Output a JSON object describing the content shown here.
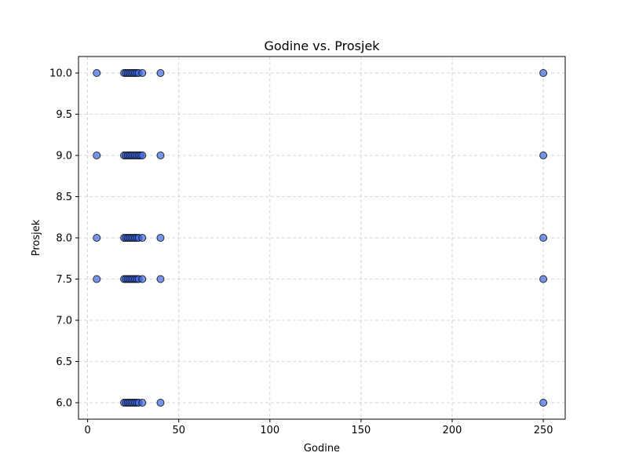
{
  "chart_data": {
    "type": "scatter",
    "title": "Godine vs. Prosjek",
    "xlabel": "Godine",
    "ylabel": "Prosjek",
    "xlim": [
      -5,
      262
    ],
    "ylim": [
      5.8,
      10.2
    ],
    "x_ticks": [
      0,
      50,
      100,
      150,
      200,
      250
    ],
    "y_ticks": [
      6.0,
      6.5,
      7.0,
      7.5,
      8.0,
      8.5,
      9.0,
      9.5,
      10.0
    ],
    "grid": true,
    "legend": "none",
    "marker_color": "#4169e1",
    "marker_edge_color": "#000000",
    "points": [
      {
        "x": 5,
        "y": 10.0
      },
      {
        "x": 5,
        "y": 9.0
      },
      {
        "x": 5,
        "y": 8.0
      },
      {
        "x": 5,
        "y": 7.5
      },
      {
        "x": 20,
        "y": 10.0
      },
      {
        "x": 21,
        "y": 10.0
      },
      {
        "x": 22,
        "y": 10.0
      },
      {
        "x": 23,
        "y": 10.0
      },
      {
        "x": 24,
        "y": 10.0
      },
      {
        "x": 25,
        "y": 10.0
      },
      {
        "x": 26,
        "y": 10.0
      },
      {
        "x": 27,
        "y": 10.0
      },
      {
        "x": 28,
        "y": 10.0
      },
      {
        "x": 30,
        "y": 10.0
      },
      {
        "x": 20,
        "y": 9.0
      },
      {
        "x": 21,
        "y": 9.0
      },
      {
        "x": 22,
        "y": 9.0
      },
      {
        "x": 23,
        "y": 9.0
      },
      {
        "x": 24,
        "y": 9.0
      },
      {
        "x": 25,
        "y": 9.0
      },
      {
        "x": 26,
        "y": 9.0
      },
      {
        "x": 27,
        "y": 9.0
      },
      {
        "x": 28,
        "y": 9.0
      },
      {
        "x": 29,
        "y": 9.0
      },
      {
        "x": 30,
        "y": 9.0
      },
      {
        "x": 20,
        "y": 8.0
      },
      {
        "x": 21,
        "y": 8.0
      },
      {
        "x": 22,
        "y": 8.0
      },
      {
        "x": 23,
        "y": 8.0
      },
      {
        "x": 24,
        "y": 8.0
      },
      {
        "x": 25,
        "y": 8.0
      },
      {
        "x": 26,
        "y": 8.0
      },
      {
        "x": 27,
        "y": 8.0
      },
      {
        "x": 28,
        "y": 8.0
      },
      {
        "x": 30,
        "y": 8.0
      },
      {
        "x": 20,
        "y": 7.5
      },
      {
        "x": 21,
        "y": 7.5
      },
      {
        "x": 22,
        "y": 7.5
      },
      {
        "x": 23,
        "y": 7.5
      },
      {
        "x": 24,
        "y": 7.5
      },
      {
        "x": 25,
        "y": 7.5
      },
      {
        "x": 26,
        "y": 7.5
      },
      {
        "x": 27,
        "y": 7.5
      },
      {
        "x": 28,
        "y": 7.5
      },
      {
        "x": 30,
        "y": 7.5
      },
      {
        "x": 20,
        "y": 6.0
      },
      {
        "x": 21,
        "y": 6.0
      },
      {
        "x": 22,
        "y": 6.0
      },
      {
        "x": 23,
        "y": 6.0
      },
      {
        "x": 24,
        "y": 6.0
      },
      {
        "x": 25,
        "y": 6.0
      },
      {
        "x": 26,
        "y": 6.0
      },
      {
        "x": 27,
        "y": 6.0
      },
      {
        "x": 28,
        "y": 6.0
      },
      {
        "x": 30,
        "y": 6.0
      },
      {
        "x": 40,
        "y": 10.0
      },
      {
        "x": 40,
        "y": 9.0
      },
      {
        "x": 40,
        "y": 8.0
      },
      {
        "x": 40,
        "y": 7.5
      },
      {
        "x": 40,
        "y": 6.0
      },
      {
        "x": 250,
        "y": 10.0
      },
      {
        "x": 250,
        "y": 9.0
      },
      {
        "x": 250,
        "y": 8.0
      },
      {
        "x": 250,
        "y": 7.5
      },
      {
        "x": 250,
        "y": 6.0
      }
    ]
  }
}
